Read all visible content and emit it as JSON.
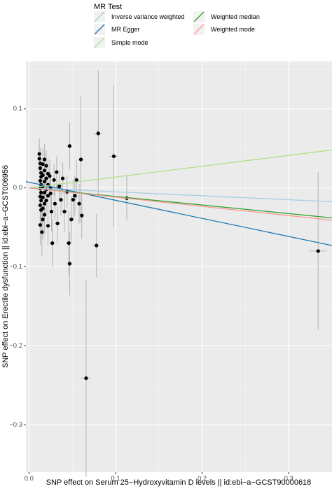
{
  "chart_data": {
    "type": "scatter",
    "xlabel": "SNP effect on Serum 25−Hydroxyvitamin D levels || id:ebi−a−GCST90000618",
    "ylabel": "SNP effect on Erectile dysfunction || id:ebi−a−GCST006956",
    "xlim": [
      -0.0035,
      0.35
    ],
    "ylim": [
      -0.36,
      0.16
    ],
    "x_ticks": [
      0.0,
      0.1,
      0.2,
      0.3
    ],
    "x_tick_labels": [
      "0.0",
      "0.1",
      "0.2",
      "0.3"
    ],
    "y_ticks": [
      0.1,
      0.0,
      -0.1,
      -0.2,
      -0.3
    ],
    "y_tick_labels": [
      "0.1",
      "0.0",
      "−0.1",
      "−0.2",
      "−0.3"
    ],
    "grid": true,
    "legend": {
      "title": "MR Test",
      "position": "top",
      "entries": [
        {
          "label": "Inverse variance weighted",
          "color": "#a6cee3"
        },
        {
          "label": "MR Egger",
          "color": "#1f78b4"
        },
        {
          "label": "Simple mode",
          "color": "#b2df8a"
        },
        {
          "label": "Weighted median",
          "color": "#33a02c"
        },
        {
          "label": "Weighted mode",
          "color": "#fb9a99"
        }
      ]
    },
    "lines": [
      {
        "name": "Inverse variance weighted",
        "color": "#a6cee3",
        "x": [
          0.0,
          0.35
        ],
        "y": [
          0.0,
          -0.0175
        ]
      },
      {
        "name": "MR Egger",
        "color": "#1f78b4",
        "x": [
          -0.0035,
          0.35
        ],
        "y": [
          0.008,
          -0.073
        ]
      },
      {
        "name": "Simple mode",
        "color": "#b2df8a",
        "x": [
          0.0,
          0.35
        ],
        "y": [
          0.0,
          0.048
        ]
      },
      {
        "name": "Weighted median",
        "color": "#33a02c",
        "x": [
          0.0,
          0.35
        ],
        "y": [
          0.0,
          -0.038
        ]
      },
      {
        "name": "Weighted mode",
        "color": "#fb9a99",
        "x": [
          0.0,
          0.35
        ],
        "y": [
          0.0,
          -0.041
        ]
      }
    ],
    "points": [
      {
        "x": 0.012,
        "y": 0.043,
        "xerr": 0.002,
        "yerr": 0.02
      },
      {
        "x": 0.012,
        "y": 0.037,
        "xerr": 0.002,
        "yerr": 0.02
      },
      {
        "x": 0.013,
        "y": 0.031,
        "xerr": 0.002,
        "yerr": 0.02
      },
      {
        "x": 0.013,
        "y": 0.025,
        "xerr": 0.002,
        "yerr": 0.02
      },
      {
        "x": 0.014,
        "y": 0.019,
        "xerr": 0.002,
        "yerr": 0.02
      },
      {
        "x": 0.014,
        "y": 0.014,
        "xerr": 0.002,
        "yerr": 0.02
      },
      {
        "x": 0.013,
        "y": 0.009,
        "xerr": 0.002,
        "yerr": 0.02
      },
      {
        "x": 0.014,
        "y": 0.004,
        "xerr": 0.002,
        "yerr": 0.02
      },
      {
        "x": 0.013,
        "y": -0.001,
        "xerr": 0.002,
        "yerr": 0.02
      },
      {
        "x": 0.014,
        "y": -0.006,
        "xerr": 0.002,
        "yerr": 0.02
      },
      {
        "x": 0.013,
        "y": -0.011,
        "xerr": 0.002,
        "yerr": 0.02
      },
      {
        "x": 0.014,
        "y": -0.016,
        "xerr": 0.002,
        "yerr": 0.02
      },
      {
        "x": 0.013,
        "y": -0.022,
        "xerr": 0.002,
        "yerr": 0.02
      },
      {
        "x": 0.014,
        "y": -0.028,
        "xerr": 0.002,
        "yerr": 0.02
      },
      {
        "x": 0.013,
        "y": -0.047,
        "xerr": 0.002,
        "yerr": 0.025
      },
      {
        "x": 0.016,
        "y": 0.03,
        "xerr": 0.002,
        "yerr": 0.02
      },
      {
        "x": 0.016,
        "y": 0.016,
        "xerr": 0.002,
        "yerr": 0.02
      },
      {
        "x": 0.016,
        "y": 0.002,
        "xerr": 0.002,
        "yerr": 0.02
      },
      {
        "x": 0.016,
        "y": -0.012,
        "xerr": 0.002,
        "yerr": 0.02
      },
      {
        "x": 0.016,
        "y": -0.026,
        "xerr": 0.002,
        "yerr": 0.02
      },
      {
        "x": 0.016,
        "y": -0.04,
        "xerr": 0.002,
        "yerr": 0.025
      },
      {
        "x": 0.015,
        "y": -0.056,
        "xerr": 0.002,
        "yerr": 0.03
      },
      {
        "x": 0.018,
        "y": 0.036,
        "xerr": 0.002,
        "yerr": 0.02
      },
      {
        "x": 0.018,
        "y": 0.022,
        "xerr": 0.002,
        "yerr": 0.02
      },
      {
        "x": 0.018,
        "y": 0.008,
        "xerr": 0.002,
        "yerr": 0.02
      },
      {
        "x": 0.018,
        "y": -0.006,
        "xerr": 0.002,
        "yerr": 0.02
      },
      {
        "x": 0.018,
        "y": -0.02,
        "xerr": 0.002,
        "yerr": 0.02
      },
      {
        "x": 0.018,
        "y": -0.034,
        "xerr": 0.002,
        "yerr": 0.025
      },
      {
        "x": 0.02,
        "y": 0.028,
        "xerr": 0.002,
        "yerr": 0.02
      },
      {
        "x": 0.02,
        "y": 0.012,
        "xerr": 0.002,
        "yerr": 0.02
      },
      {
        "x": 0.02,
        "y": -0.002,
        "xerr": 0.002,
        "yerr": 0.02
      },
      {
        "x": 0.02,
        "y": -0.016,
        "xerr": 0.002,
        "yerr": 0.02
      },
      {
        "x": 0.022,
        "y": 0.018,
        "xerr": 0.002,
        "yerr": 0.02
      },
      {
        "x": 0.022,
        "y": 0.004,
        "xerr": 0.002,
        "yerr": 0.02
      },
      {
        "x": 0.022,
        "y": -0.01,
        "xerr": 0.002,
        "yerr": 0.02
      },
      {
        "x": 0.022,
        "y": -0.048,
        "xerr": 0.002,
        "yerr": 0.025
      },
      {
        "x": 0.024,
        "y": 0.015,
        "xerr": 0.002,
        "yerr": 0.02
      },
      {
        "x": 0.025,
        "y": 0.0,
        "xerr": 0.002,
        "yerr": 0.02
      },
      {
        "x": 0.025,
        "y": -0.007,
        "xerr": 0.002,
        "yerr": 0.02
      },
      {
        "x": 0.026,
        "y": -0.03,
        "xerr": 0.002,
        "yerr": 0.025
      },
      {
        "x": 0.027,
        "y": -0.07,
        "xerr": 0.003,
        "yerr": 0.03
      },
      {
        "x": 0.029,
        "y": 0.01,
        "xerr": 0.002,
        "yerr": 0.02
      },
      {
        "x": 0.03,
        "y": -0.02,
        "xerr": 0.002,
        "yerr": 0.02
      },
      {
        "x": 0.032,
        "y": 0.02,
        "xerr": 0.002,
        "yerr": 0.02
      },
      {
        "x": 0.033,
        "y": -0.045,
        "xerr": 0.003,
        "yerr": 0.025
      },
      {
        "x": 0.035,
        "y": 0.002,
        "xerr": 0.002,
        "yerr": 0.02
      },
      {
        "x": 0.037,
        "y": -0.015,
        "xerr": 0.002,
        "yerr": 0.02
      },
      {
        "x": 0.039,
        "y": 0.012,
        "xerr": 0.002,
        "yerr": 0.02
      },
      {
        "x": 0.041,
        "y": -0.03,
        "xerr": 0.003,
        "yerr": 0.025
      },
      {
        "x": 0.044,
        "y": -0.005,
        "xerr": 0.003,
        "yerr": 0.02
      },
      {
        "x": 0.046,
        "y": -0.07,
        "xerr": 0.003,
        "yerr": 0.04
      },
      {
        "x": 0.047,
        "y": 0.053,
        "xerr": 0.003,
        "yerr": 0.03
      },
      {
        "x": 0.047,
        "y": -0.096,
        "xerr": 0.003,
        "yerr": 0.04
      },
      {
        "x": 0.049,
        "y": -0.04,
        "xerr": 0.003,
        "yerr": 0.03
      },
      {
        "x": 0.051,
        "y": -0.015,
        "xerr": 0.003,
        "yerr": 0.025
      },
      {
        "x": 0.053,
        "y": -0.01,
        "xerr": 0.003,
        "yerr": 0.025
      },
      {
        "x": 0.055,
        "y": 0.01,
        "xerr": 0.003,
        "yerr": 0.025
      },
      {
        "x": 0.058,
        "y": -0.02,
        "xerr": 0.003,
        "yerr": 0.025
      },
      {
        "x": 0.06,
        "y": 0.036,
        "xerr": 0.003,
        "yerr": 0.08
      },
      {
        "x": 0.061,
        "y": -0.035,
        "xerr": 0.003,
        "yerr": 0.03
      },
      {
        "x": 0.066,
        "y": -0.241,
        "xerr": 0.006,
        "yerr": 0.125
      },
      {
        "x": 0.078,
        "y": -0.073,
        "xerr": 0.004,
        "yerr": 0.04
      },
      {
        "x": 0.08,
        "y": 0.069,
        "xerr": 0.005,
        "yerr": 0.08
      },
      {
        "x": 0.098,
        "y": 0.04,
        "xerr": 0.005,
        "yerr": 0.09
      },
      {
        "x": 0.113,
        "y": -0.013,
        "xerr": 0.006,
        "yerr": 0.028
      },
      {
        "x": 0.334,
        "y": -0.08,
        "xerr": 0.01,
        "yerr": 0.1
      }
    ]
  }
}
